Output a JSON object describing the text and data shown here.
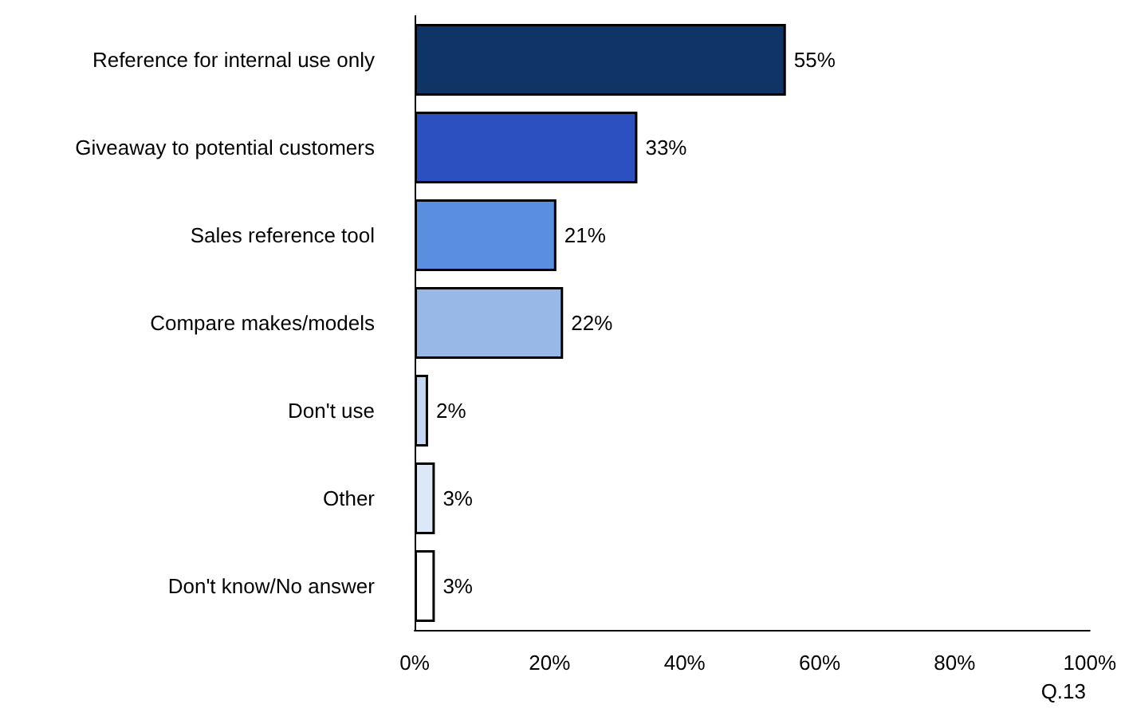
{
  "chart_data": {
    "type": "bar",
    "orientation": "horizontal",
    "categories": [
      "Reference for internal use only",
      "Giveaway to potential customers",
      "Sales reference tool",
      "Compare makes/models",
      "Don't use",
      "Other",
      "Don't know/No answer"
    ],
    "values": [
      55,
      33,
      21,
      22,
      2,
      3,
      3
    ],
    "value_labels": [
      "55%",
      "33%",
      "21%",
      "22%",
      "2%",
      "3%",
      "3%"
    ],
    "colors": [
      "#0f3466",
      "#2c50c0",
      "#5a8fe0",
      "#98b8e8",
      "#c4d6f2",
      "#dce8f8",
      "#ffffff"
    ],
    "xlim": [
      0,
      100
    ],
    "xticks": [
      {
        "value": 0,
        "label": "0%"
      },
      {
        "value": 20,
        "label": "20%"
      },
      {
        "value": 40,
        "label": "40%"
      },
      {
        "value": 60,
        "label": "60%"
      },
      {
        "value": 80,
        "label": "80%"
      },
      {
        "value": 100,
        "label": "100%"
      }
    ],
    "annotations": [
      "Q.13"
    ]
  }
}
